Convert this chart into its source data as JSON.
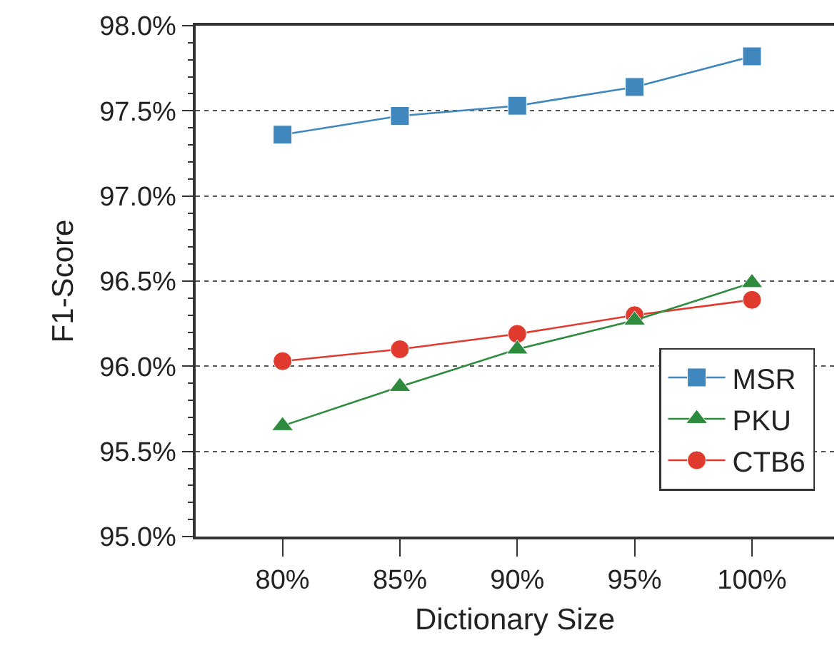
{
  "chart_data": {
    "type": "line",
    "xlabel": "Dictionary Size",
    "ylabel": "F1-Score",
    "categories": [
      "80%",
      "85%",
      "90%",
      "95%",
      "100%"
    ],
    "series": [
      {
        "name": "MSR",
        "color": "#3f87bd",
        "marker": "square",
        "values": [
          97.36,
          97.47,
          97.53,
          97.64,
          97.82
        ]
      },
      {
        "name": "PKU",
        "color": "#2e8b3e",
        "marker": "triangle",
        "values": [
          95.65,
          95.88,
          96.1,
          96.27,
          96.49
        ]
      },
      {
        "name": "CTB6",
        "color": "#e0392e",
        "marker": "circle",
        "values": [
          96.03,
          96.1,
          96.19,
          96.3,
          96.39
        ]
      }
    ],
    "ylim": [
      95.0,
      98.0
    ],
    "yticks": [
      {
        "value": 95.0,
        "label": "95.0%"
      },
      {
        "value": 95.5,
        "label": "95.5%"
      },
      {
        "value": 96.0,
        "label": "96.0%"
      },
      {
        "value": 96.5,
        "label": "96.5%"
      },
      {
        "value": 97.0,
        "label": "97.0%"
      },
      {
        "value": 97.5,
        "label": "97.5%"
      },
      {
        "value": 98.0,
        "label": "98.0%"
      }
    ],
    "grid": "y",
    "legend": "bottom right",
    "line_style": "solid"
  }
}
